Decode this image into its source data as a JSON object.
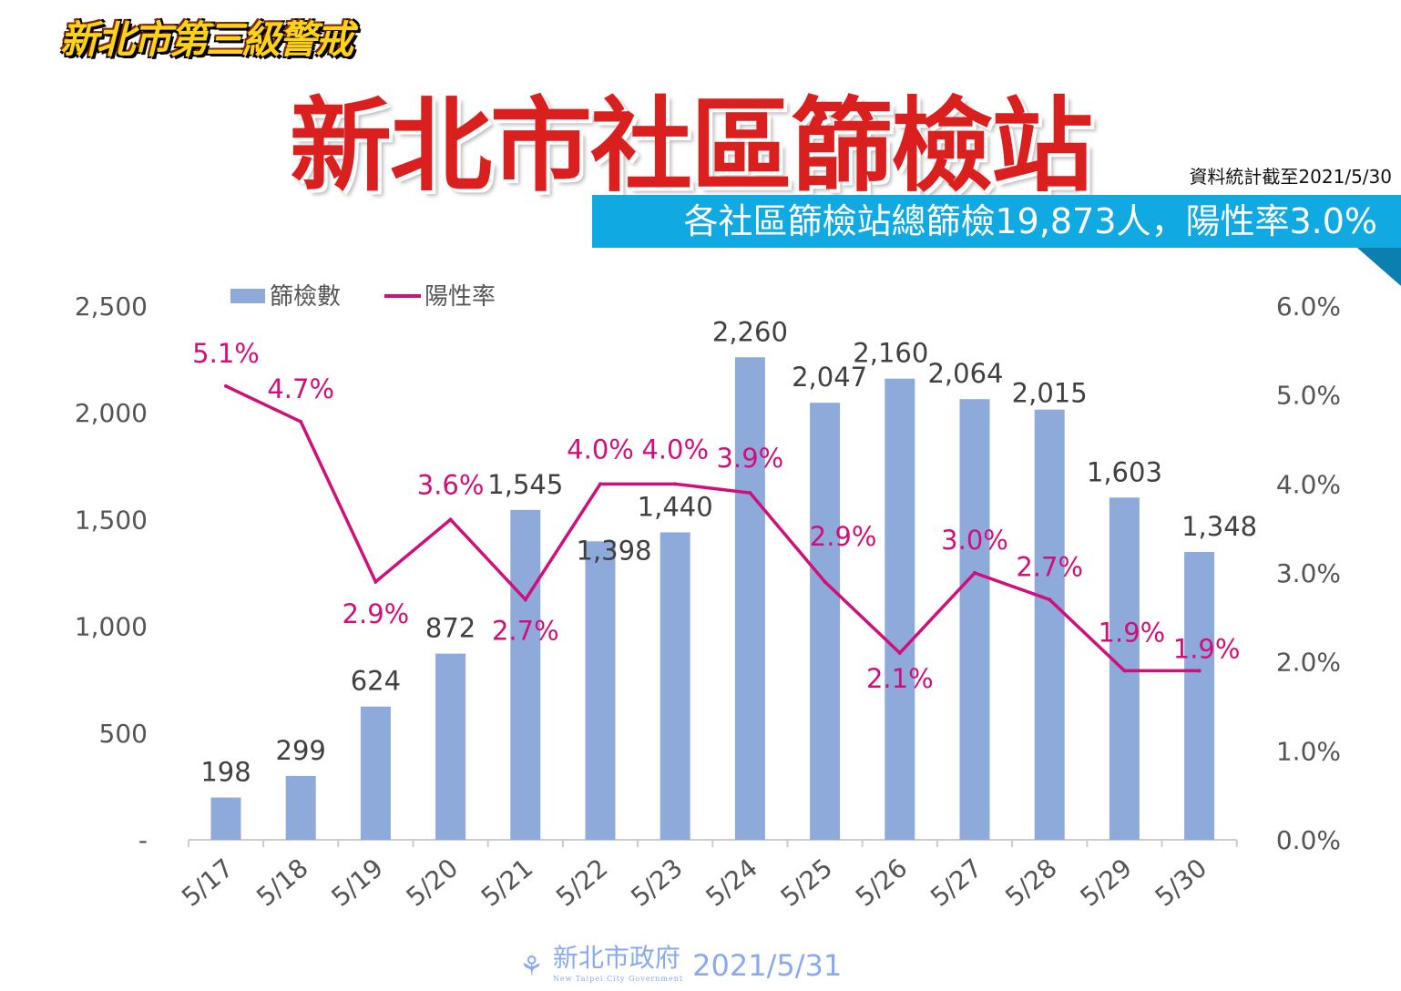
{
  "header": {
    "badge": "新北市第三級警戒",
    "title": "新北市社區篩檢站",
    "as_of": "資料統計截至2021/5/30",
    "banner": "各社區篩檢站總篩檢19,873人，陽性率3.0%"
  },
  "footer": {
    "org_name": "新北市政府",
    "org_name_en": "New Taipei City Government",
    "date": "2021/5/31"
  },
  "colors": {
    "bar": "#8eaadb",
    "line": "#d0107a",
    "banner": "#11a9e1",
    "title": "#d9201f"
  },
  "chart_data": {
    "type": "bar+line",
    "categories": [
      "5/17",
      "5/18",
      "5/19",
      "5/20",
      "5/21",
      "5/22",
      "5/23",
      "5/24",
      "5/25",
      "5/26",
      "5/27",
      "5/28",
      "5/29",
      "5/30"
    ],
    "series": [
      {
        "name": "篩檢數",
        "type": "bar",
        "axis": "left",
        "values": [
          198,
          299,
          624,
          872,
          1545,
          1398,
          1440,
          2260,
          2047,
          2160,
          2064,
          2015,
          1603,
          1348
        ],
        "labels": [
          "198",
          "299",
          "624",
          "872",
          "1,545",
          "1,398",
          "1,440",
          "2,260",
          "2,047",
          "2,160",
          "2,064",
          "2,015",
          "1,603",
          "1,348"
        ]
      },
      {
        "name": "陽性率",
        "type": "line",
        "axis": "right",
        "values": [
          5.1,
          4.7,
          2.9,
          3.6,
          2.7,
          4.0,
          4.0,
          3.9,
          2.9,
          2.1,
          3.0,
          2.7,
          1.9,
          1.9
        ],
        "labels": [
          "5.1%",
          "4.7%",
          "2.9%",
          "3.6%",
          "2.7%",
          "4.0%",
          "4.0%",
          "3.9%",
          "2.9%",
          "2.1%",
          "3.0%",
          "2.7%",
          "1.9%",
          "1.9%"
        ]
      }
    ],
    "y_left": {
      "range": [
        0,
        2500
      ],
      "ticks": [
        "-",
        "500",
        "1,000",
        "1,500",
        "2,000",
        "2,500"
      ]
    },
    "y_right": {
      "range": [
        0,
        6
      ],
      "ticks": [
        "0.0%",
        "1.0%",
        "2.0%",
        "3.0%",
        "4.0%",
        "5.0%",
        "6.0%"
      ]
    },
    "legend": "top-left",
    "grid": false
  }
}
